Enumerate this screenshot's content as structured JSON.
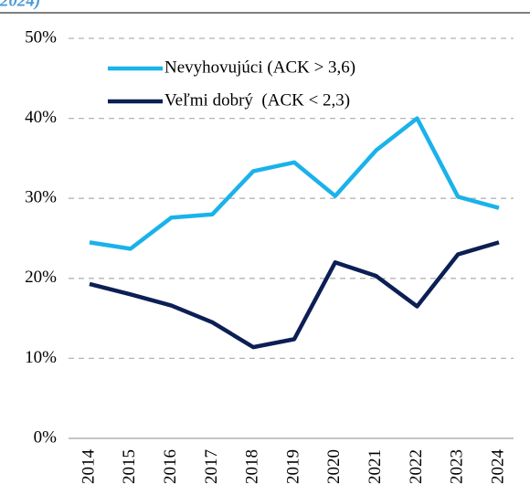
{
  "chart_data": {
    "type": "line",
    "title": "2024)",
    "categories": [
      "2014",
      "2015",
      "2016",
      "2017",
      "2018",
      "2019",
      "2020",
      "2021",
      "2022",
      "2023",
      "2024"
    ],
    "series": [
      {
        "name": "Nevyhovujúci (ACK > 3,6)",
        "color": "#1ab2ea",
        "values": [
          24.5,
          23.7,
          27.6,
          28.0,
          33.4,
          34.5,
          30.3,
          36.0,
          40.0,
          30.2,
          28.8
        ]
      },
      {
        "name": "Veľmi dobrý  (ACK < 2,3)",
        "color": "#0c1f55",
        "values": [
          19.3,
          18.0,
          16.6,
          14.5,
          11.4,
          12.4,
          22.0,
          20.3,
          16.5,
          23.0,
          24.5
        ]
      }
    ],
    "ylim": [
      0,
      50
    ],
    "yticks": [
      {
        "value": 0,
        "label": "0%"
      },
      {
        "value": 10,
        "label": "10%"
      },
      {
        "value": 20,
        "label": "20%"
      },
      {
        "value": 30,
        "label": "30%"
      },
      {
        "value": 40,
        "label": "40%"
      },
      {
        "value": 50,
        "label": "50%"
      }
    ],
    "grid": true,
    "legend": "upper left"
  }
}
